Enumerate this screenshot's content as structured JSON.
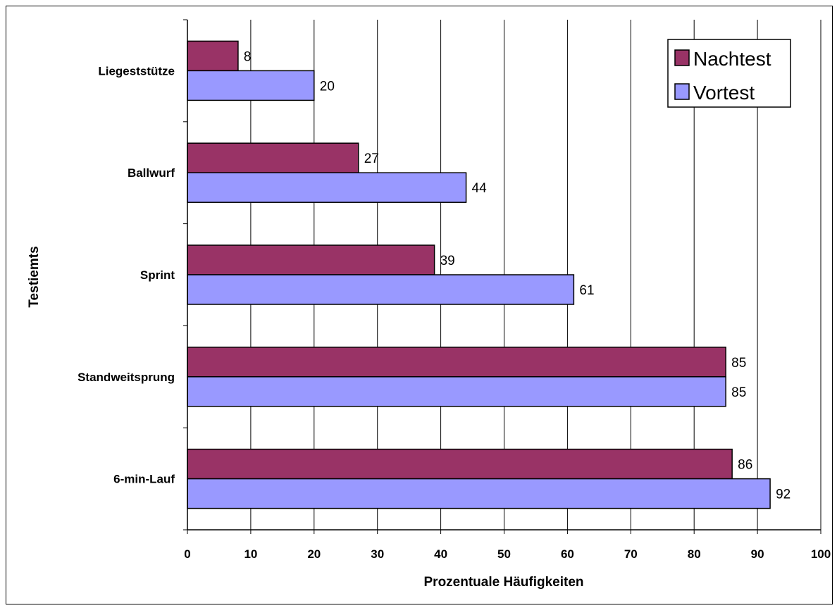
{
  "chart_data": {
    "type": "bar",
    "orientation": "horizontal",
    "categories": [
      "Liegeststütze",
      "Ballwurf",
      "Sprint",
      "Standweitsprung",
      "6-min-Lauf"
    ],
    "series": [
      {
        "name": "Nachtest",
        "color": "#993366",
        "values": [
          8,
          27,
          39,
          85,
          86
        ]
      },
      {
        "name": "Vortest",
        "color": "#9999ff",
        "values": [
          20,
          44,
          61,
          85,
          92
        ]
      }
    ],
    "xlabel": "Prozentuale Häufigkeiten",
    "ylabel": "Testiemts",
    "xlim": [
      0,
      100
    ],
    "xticks": [
      0,
      10,
      20,
      30,
      40,
      50,
      60,
      70,
      80,
      90,
      100
    ],
    "grid": "vertical",
    "legend": "top-right",
    "data_labels": true
  }
}
